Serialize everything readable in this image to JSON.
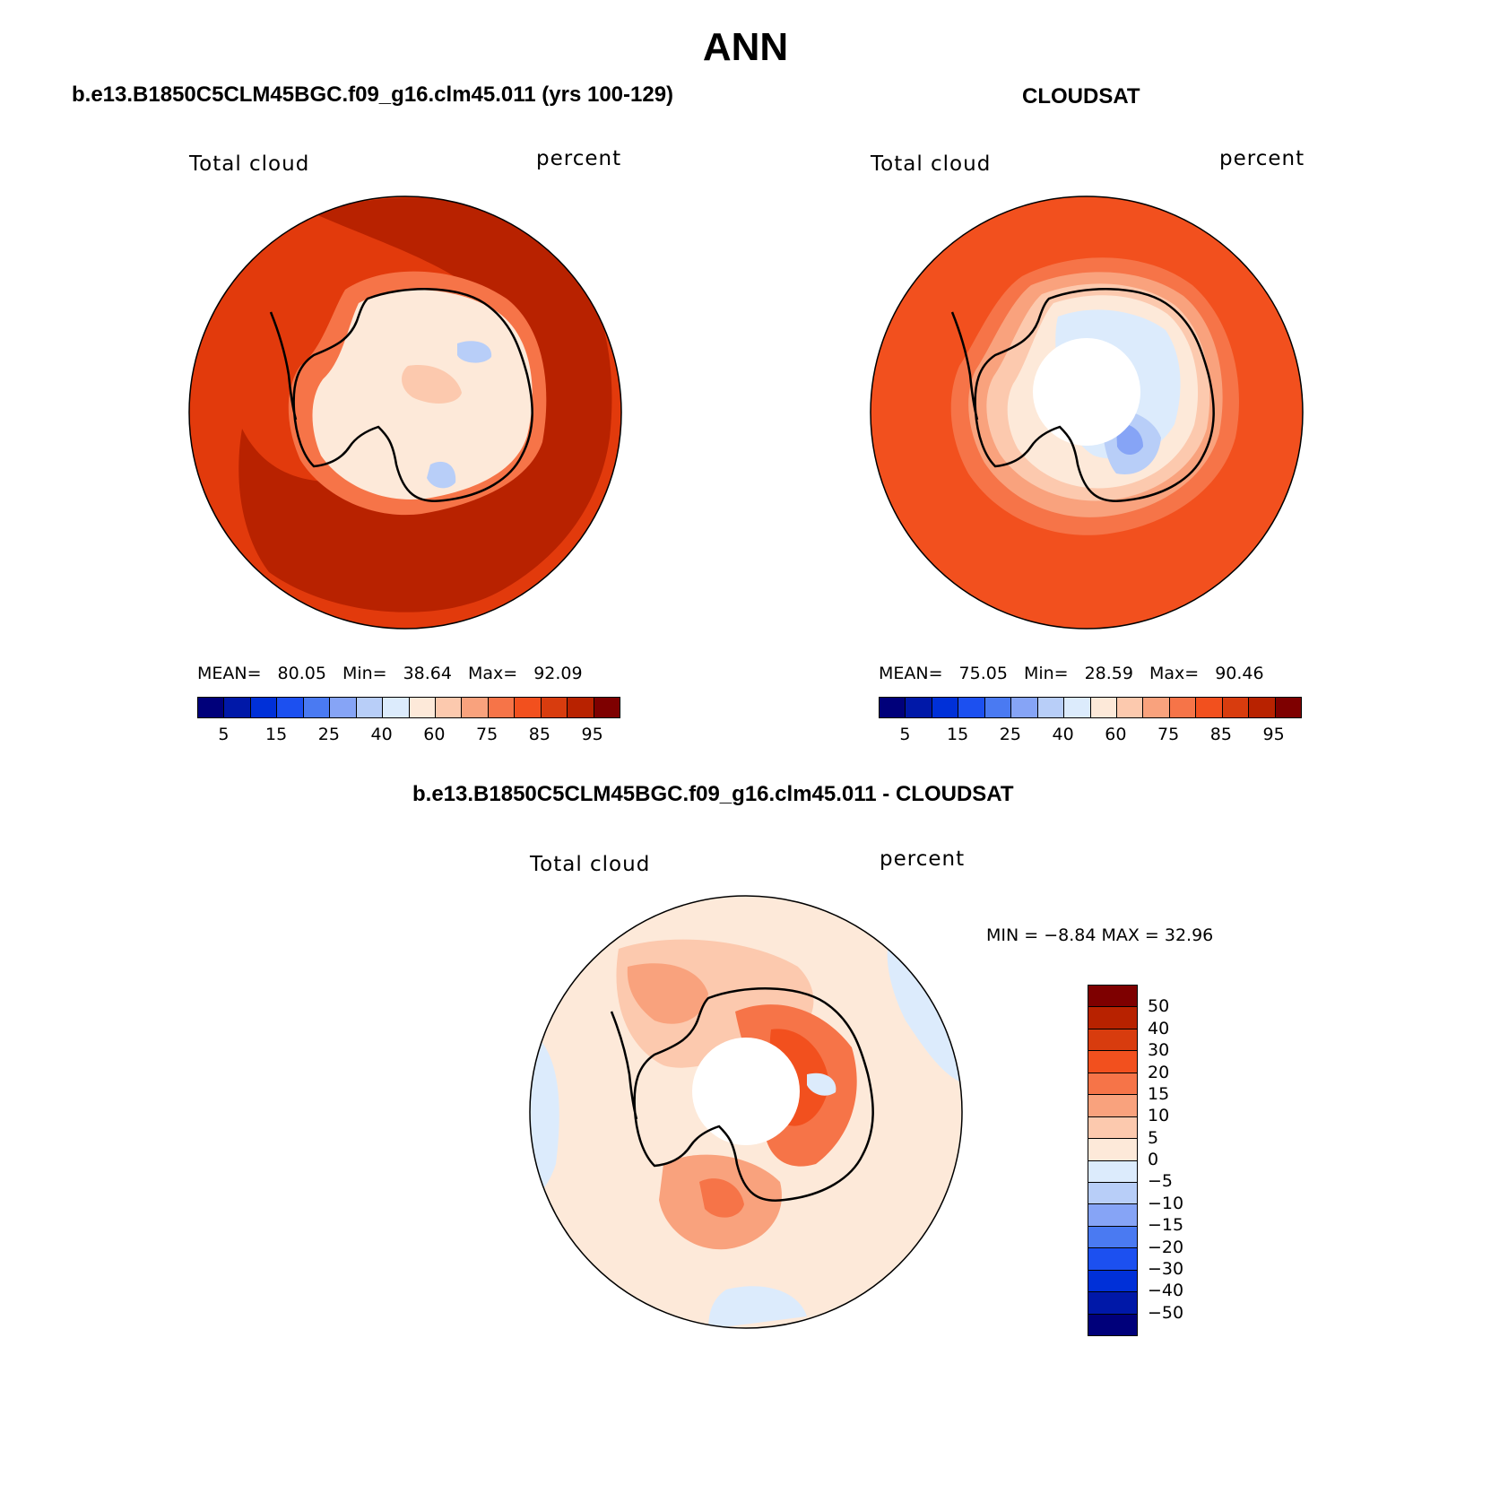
{
  "figure": {
    "title": "ANN",
    "panels": [
      {
        "title": "b.e13.B1850C5CLM45BGC.f09_g16.clm45.011 (yrs 100-129)",
        "variable_label": "Total cloud",
        "units_label": "percent",
        "stats": {
          "mean_label": "MEAN=",
          "mean": "80.05",
          "min_label": "Min=",
          "min": "38.64",
          "max_label": "Max=",
          "max": "92.09"
        }
      },
      {
        "title": "CLOUDSAT",
        "variable_label": "Total cloud",
        "units_label": "percent",
        "stats": {
          "mean_label": "MEAN=",
          "mean": "75.05",
          "min_label": "Min=",
          "min": "28.59",
          "max_label": "Max=",
          "max": "90.46"
        }
      },
      {
        "title": "b.e13.B1850C5CLM45BGC.f09_g16.clm45.011 - CLOUDSAT",
        "variable_label": "Total cloud",
        "units_label": "percent",
        "stats": {
          "text": "MIN =   −8.84 MAX =   32.96"
        }
      }
    ]
  },
  "colorbar_abs": {
    "colors": [
      "#00007a",
      "#0018a8",
      "#0030d8",
      "#1c50f0",
      "#4a7af2",
      "#86a4f6",
      "#b8cef8",
      "#dcebfc",
      "#fde9d9",
      "#fcc9ae",
      "#f9a27d",
      "#f67448",
      "#f2501e",
      "#d83c0e",
      "#b82200",
      "#7e0000"
    ],
    "tick_labels": [
      "5",
      "15",
      "25",
      "40",
      "60",
      "75",
      "85",
      "95"
    ]
  },
  "colorbar_diff": {
    "colors": [
      "#00007a",
      "#0018a8",
      "#0030d8",
      "#1c50f0",
      "#4a7af2",
      "#86a4f6",
      "#b8cef8",
      "#dcebfc",
      "#fde9d9",
      "#fcc9ae",
      "#f9a27d",
      "#f67448",
      "#f2501e",
      "#d83c0e",
      "#b82200",
      "#7e0000"
    ],
    "tick_labels": [
      "50",
      "40",
      "30",
      "20",
      "15",
      "10",
      "5",
      "0",
      "−5",
      "−10",
      "−15",
      "−20",
      "−30",
      "−40",
      "−50"
    ]
  },
  "map_colors": {
    "coast": "#000000",
    "p1_ocean": "#e23a0c",
    "p1_dark": "#b82200",
    "p1_ring": "#f67448",
    "p1_land": "#fde9d9",
    "p1_land2": "#fcc9ae",
    "p1_blue": "#b8cef8",
    "p2_ocean": "#f2501e",
    "p2_ring1": "#f67448",
    "p2_ring2": "#f9a27d",
    "p2_ring3": "#fcc9ae",
    "p2_land": "#fde9d9",
    "p2_blue1": "#dcebfc",
    "p2_blue2": "#b8cef8",
    "p2_blue3": "#86a4f6",
    "p3_bg": "#fde9d9",
    "p3_pos1": "#fcc9ae",
    "p3_pos2": "#f9a27d",
    "p3_pos3": "#f67448",
    "p3_pos4": "#f2501e",
    "p3_neg": "#dcebfc"
  }
}
